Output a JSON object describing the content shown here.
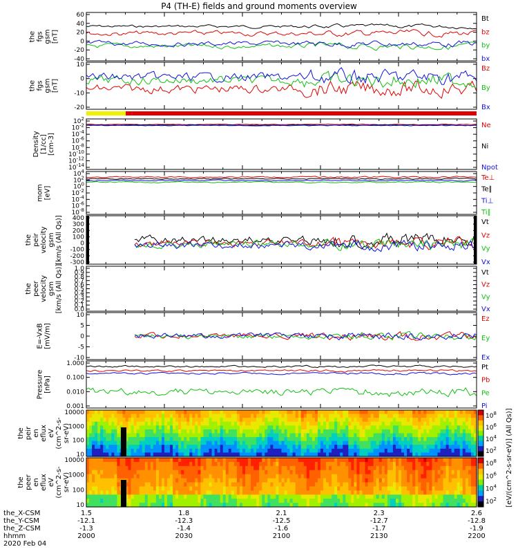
{
  "page_title": "P4 (TH-E) fields and ground moments overview",
  "colors": {
    "black": "#000000",
    "red": "#e00000",
    "green": "#10c010",
    "blue": "#1010e0",
    "yellow": "#f0f000"
  },
  "axis_footer": {
    "row_labels": [
      "the_X-CSM",
      "the_Y-CSM",
      "the_Z-CSM",
      "hhmm",
      "2020 Feb 04"
    ],
    "columns": [
      [
        "1.5",
        "-12.1",
        "-1.3",
        "2000"
      ],
      [
        "1.8",
        "-12.3",
        "-1.4",
        "2030"
      ],
      [
        "2.1",
        "-12.5",
        "-1.6",
        "2100"
      ],
      [
        "2.3",
        "-12.7",
        "-1.7",
        "2130"
      ],
      [
        "2.6",
        "-12.8",
        "-1.9",
        "2200"
      ]
    ]
  },
  "colorbar_label": "[eV/(cm^2-s-sr-eV)] (All Qs)]",
  "chart_data": [
    {
      "id": "fgs-gsm-top",
      "type": "line",
      "ylabel": [
        "the",
        "fgs",
        "gsm",
        "[nT]"
      ],
      "ylim": [
        -40,
        60
      ],
      "yticks": [
        "60",
        "40",
        "20",
        "0",
        "-20",
        "-40"
      ],
      "series": [
        {
          "name": "Bt",
          "color": "black",
          "level": 33
        },
        {
          "name": "bz",
          "color": "red",
          "level": 17
        },
        {
          "name": "by",
          "color": "green",
          "level": -12
        },
        {
          "name": "bx",
          "color": "blue",
          "level": -6
        }
      ]
    },
    {
      "id": "fgs-gsm-bottom",
      "type": "line",
      "ylabel": [
        "the",
        "fgs",
        "gsm",
        "[nT]"
      ],
      "ylim": [
        -25,
        15
      ],
      "yticks": [
        "10",
        "0",
        "-10",
        "-20"
      ],
      "series": [
        {
          "name": "Bz",
          "color": "red",
          "level": -8
        },
        {
          "name": "By",
          "color": "green",
          "level": 0
        },
        {
          "name": "Bx",
          "color": "blue",
          "level": 3
        }
      ]
    },
    {
      "id": "density",
      "type": "line",
      "ylabel": [
        "Density",
        "[1/cc]",
        "[cm-3]"
      ],
      "log": true,
      "yticks": [
        "10^2",
        "10^-2",
        "10^-4",
        "10^-6",
        "10^-8",
        "10^-10",
        "10^-12",
        "10^-14"
      ],
      "series": [
        {
          "name": "Ne",
          "color": "red"
        },
        {
          "name": "Ni",
          "color": "black"
        },
        {
          "name": "Npot",
          "color": "blue"
        }
      ]
    },
    {
      "id": "temperature",
      "type": "line",
      "ylabel": [
        "mom",
        "[eV]"
      ],
      "log": true,
      "yticks": [
        "10^4",
        "10^2",
        "10^0",
        "10^-2",
        "10^-4",
        "10^-6",
        "10^-8"
      ],
      "series": [
        {
          "name": "Te⊥",
          "color": "red"
        },
        {
          "name": "Te∥",
          "color": "black"
        },
        {
          "name": "Ti⊥",
          "color": "blue"
        },
        {
          "name": "Ti∥",
          "color": "green"
        }
      ]
    },
    {
      "id": "peir-velocity",
      "type": "line",
      "ylabel": [
        "the",
        "peir",
        "velocity",
        "gsm",
        "[km/s (All Qs)]"
      ],
      "ylim": [
        -300,
        400
      ],
      "yticks": [
        "400",
        "300",
        "200",
        "100",
        "0",
        "-100",
        "-200",
        "-300"
      ],
      "series": [
        {
          "name": "Vt",
          "color": "black"
        },
        {
          "name": "Vz",
          "color": "red"
        },
        {
          "name": "Vy",
          "color": "green"
        },
        {
          "name": "Vx",
          "color": "blue"
        }
      ]
    },
    {
      "id": "peer-velocity",
      "type": "line",
      "ylabel": [
        "the",
        "peer",
        "velocity",
        "gsm",
        "[km/s (All Qs)]"
      ],
      "ylim": [
        0,
        1
      ],
      "yticks": [
        "1.0",
        "0.9",
        "0.8",
        "0.7",
        "0.6",
        "0.5",
        "0.4",
        "0.3",
        "0.2",
        "0.1",
        "0.0"
      ],
      "series": [
        {
          "name": "Vt",
          "color": "black"
        },
        {
          "name": "Vz",
          "color": "red"
        },
        {
          "name": "Vy",
          "color": "green"
        },
        {
          "name": "Vx",
          "color": "blue"
        }
      ]
    },
    {
      "id": "efield",
      "type": "line",
      "ylabel": [
        "E=-VxB",
        "[mV/m]"
      ],
      "ylim": [
        -10,
        10
      ],
      "yticks": [
        "10",
        "5",
        "0",
        "-5",
        "-10"
      ],
      "series": [
        {
          "name": "Ez",
          "color": "red"
        },
        {
          "name": "Ey",
          "color": "green"
        },
        {
          "name": "Ex",
          "color": "blue"
        }
      ]
    },
    {
      "id": "pressure",
      "type": "line",
      "ylabel": [
        "Pressure",
        "[nPa]"
      ],
      "log": true,
      "yticks": [
        "1.000",
        "0.100",
        "0.010",
        "0.001"
      ],
      "series": [
        {
          "name": "Pt",
          "color": "black"
        },
        {
          "name": "Pb",
          "color": "red"
        },
        {
          "name": "Pe",
          "color": "green"
        },
        {
          "name": "Pi",
          "color": "blue"
        }
      ]
    },
    {
      "id": "peir-spectrogram",
      "type": "heatmap",
      "ylabel": [
        "the",
        "peir",
        "en",
        "eflux",
        "eV",
        "(cm^2-s-",
        "sr-eV)"
      ],
      "yticks": [
        "10000",
        "1000",
        "100",
        "10"
      ],
      "colorbar_ticks": [
        "10^8",
        "10^6",
        "10^4",
        "10^2"
      ]
    },
    {
      "id": "peer-spectrogram",
      "type": "heatmap",
      "ylabel": [
        "the",
        "peer",
        "en",
        "eflux",
        "eV",
        "(cm^2-s-",
        "sr-eV)"
      ],
      "yticks": [
        "10000",
        "1000",
        "100",
        "10"
      ],
      "colorbar_ticks": [
        "10^8",
        "10^6",
        "10^4",
        "10^2"
      ]
    }
  ]
}
